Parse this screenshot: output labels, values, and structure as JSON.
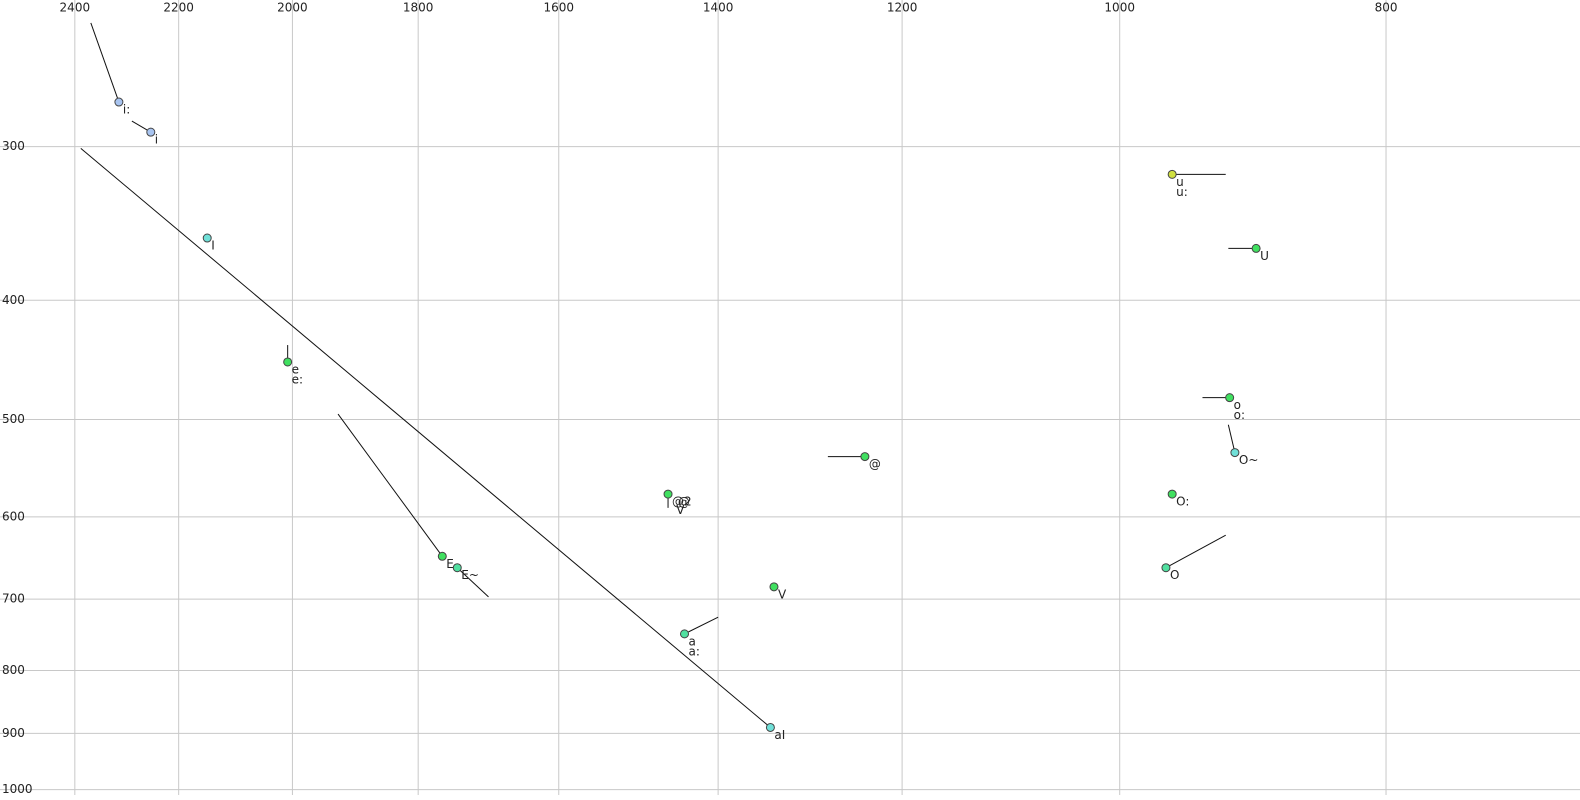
{
  "chart_data": {
    "type": "scatter",
    "xscale": "log",
    "yscale": "log",
    "grid": true,
    "xlim": [
      2430,
      680
    ],
    "ylim": [
      228,
      1010
    ],
    "xticks": [
      2400,
      2200,
      2000,
      1800,
      1600,
      1400,
      1200,
      1000,
      800
    ],
    "yticks": [
      300,
      400,
      500,
      600,
      700,
      800,
      900,
      1000
    ],
    "points": [
      {
        "labels": [
          "i:"
        ],
        "x": 2313,
        "y": 276,
        "color": "#a8c4f0",
        "line_to": [
          2368,
          238
        ]
      },
      {
        "labels": [
          "i"
        ],
        "x": 2252,
        "y": 292,
        "color": "#a8c4f0",
        "line_to": [
          2288,
          286
        ]
      },
      {
        "labels": [
          "I"
        ],
        "x": 2148,
        "y": 356,
        "color": "#70e0d8"
      },
      {
        "labels": [
          "e",
          "e:"
        ],
        "x": 2008,
        "y": 449,
        "color": "#40e060",
        "line_to": [
          2008,
          435
        ]
      },
      {
        "labels": [
          "E"
        ],
        "x": 1764,
        "y": 646,
        "color": "#40e060",
        "line_to": [
          1925,
          495
        ]
      },
      {
        "labels": [
          "E~"
        ],
        "x": 1742,
        "y": 660,
        "color": "#50e0a0",
        "line_to": [
          1697,
          697
        ]
      },
      {
        "labels": [
          "@"
        ],
        "x": 1238,
        "y": 536,
        "color": "#40e060",
        "line_to": [
          1277,
          536
        ]
      },
      {
        "labels": [
          "@2"
        ],
        "x": 1460,
        "y": 575,
        "color": "#40e060",
        "line_to": [
          1460,
          590
        ]
      },
      {
        "labels": [
          "V"
        ],
        "x": 1336,
        "y": 684,
        "color": "#40e060"
      },
      {
        "labels": [
          "a",
          "a:"
        ],
        "x": 1440,
        "y": 747,
        "color": "#50e0a0",
        "line_to": [
          1400,
          724
        ]
      },
      {
        "labels": [
          "aI"
        ],
        "x": 1340,
        "y": 890,
        "color": "#70e0d8",
        "line_to": [
          2388,
          301
        ]
      },
      {
        "labels": [
          "u",
          "u:"
        ],
        "x": 957,
        "y": 316,
        "color": "#d0e040",
        "line_to": [
          915,
          316
        ]
      },
      {
        "labels": [
          "U"
        ],
        "x": 892,
        "y": 363,
        "color": "#40e060",
        "line_to": [
          913,
          363
        ]
      },
      {
        "labels": [
          "o",
          "o:"
        ],
        "x": 912,
        "y": 480,
        "color": "#40e060",
        "line_to": [
          933,
          480
        ]
      },
      {
        "labels": [
          "O~"
        ],
        "x": 908,
        "y": 532,
        "color": "#70e0d8",
        "line_to": [
          913,
          505
        ]
      },
      {
        "labels": [
          "O:"
        ],
        "x": 957,
        "y": 575,
        "color": "#40e060"
      },
      {
        "labels": [
          "O"
        ],
        "x": 962,
        "y": 660,
        "color": "#50e0a0",
        "line_to": [
          915,
          621
        ]
      }
    ],
    "annotations": [
      {
        "text": "@",
        "x": 1448,
        "y": 584,
        "color": "#909090"
      },
      {
        "text": "V",
        "x": 1450,
        "y": 593,
        "color": "#909090"
      }
    ]
  }
}
